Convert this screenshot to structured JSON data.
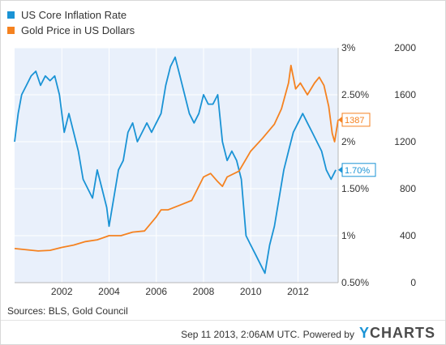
{
  "legend": [
    {
      "label": "US Core Inflation Rate",
      "color": "#1a93d5"
    },
    {
      "label": "Gold Price in US Dollars",
      "color": "#f58220"
    }
  ],
  "chart_data": {
    "type": "line",
    "x_ticks": [
      2002,
      2004,
      2006,
      2008,
      2010,
      2012
    ],
    "x_range": [
      2000.0,
      2013.7
    ],
    "plot_background": "#e9f0fb",
    "grid": true,
    "legend_position": "top-left",
    "axes": {
      "left": {
        "ticks": [
          "3%",
          "2.50%",
          "2%",
          "1.50%",
          "1%",
          "0.50%"
        ],
        "range": [
          0.5,
          3.0
        ]
      },
      "right": {
        "ticks": [
          "2000",
          "1600",
          "1200",
          "800",
          "400",
          "0"
        ],
        "range": [
          0,
          2000
        ]
      }
    },
    "series": [
      {
        "name": "US Core Inflation Rate",
        "axis": "left",
        "color": "#1a93d5",
        "end_label": "1.70%",
        "x": [
          2000.0,
          2000.15,
          2000.3,
          2000.5,
          2000.7,
          2000.9,
          2001.1,
          2001.3,
          2001.5,
          2001.7,
          2001.9,
          2002.1,
          2002.3,
          2002.5,
          2002.7,
          2002.9,
          2003.1,
          2003.3,
          2003.5,
          2003.7,
          2003.9,
          2004.0,
          2004.2,
          2004.4,
          2004.6,
          2004.8,
          2005.0,
          2005.2,
          2005.4,
          2005.6,
          2005.8,
          2006.0,
          2006.2,
          2006.4,
          2006.6,
          2006.8,
          2007.0,
          2007.2,
          2007.4,
          2007.6,
          2007.8,
          2008.0,
          2008.2,
          2008.4,
          2008.6,
          2008.8,
          2009.0,
          2009.2,
          2009.4,
          2009.6,
          2009.8,
          2010.0,
          2010.2,
          2010.4,
          2010.6,
          2010.8,
          2011.0,
          2011.2,
          2011.4,
          2011.6,
          2011.8,
          2012.0,
          2012.2,
          2012.4,
          2012.6,
          2012.8,
          2013.0,
          2013.2,
          2013.4,
          2013.6
        ],
        "y": [
          2.0,
          2.3,
          2.5,
          2.6,
          2.7,
          2.75,
          2.6,
          2.7,
          2.65,
          2.7,
          2.5,
          2.1,
          2.3,
          2.1,
          1.9,
          1.6,
          1.5,
          1.4,
          1.7,
          1.5,
          1.3,
          1.1,
          1.4,
          1.7,
          1.8,
          2.1,
          2.2,
          2.0,
          2.1,
          2.2,
          2.1,
          2.2,
          2.3,
          2.6,
          2.8,
          2.9,
          2.7,
          2.5,
          2.3,
          2.2,
          2.3,
          2.5,
          2.4,
          2.4,
          2.5,
          2.0,
          1.8,
          1.9,
          1.8,
          1.6,
          1.0,
          0.9,
          0.8,
          0.7,
          0.6,
          0.9,
          1.1,
          1.4,
          1.7,
          1.9,
          2.1,
          2.2,
          2.3,
          2.2,
          2.1,
          2.0,
          1.9,
          1.7,
          1.6,
          1.7
        ]
      },
      {
        "name": "Gold Price in US Dollars",
        "axis": "right",
        "color": "#f58220",
        "end_label": "1387",
        "x": [
          2000.0,
          2000.5,
          2001.0,
          2001.5,
          2002.0,
          2002.5,
          2003.0,
          2003.5,
          2004.0,
          2004.5,
          2005.0,
          2005.5,
          2006.0,
          2006.2,
          2006.5,
          2007.0,
          2007.5,
          2008.0,
          2008.3,
          2008.6,
          2008.8,
          2009.0,
          2009.5,
          2010.0,
          2010.5,
          2011.0,
          2011.3,
          2011.6,
          2011.7,
          2011.9,
          2012.1,
          2012.4,
          2012.7,
          2012.9,
          2013.1,
          2013.3,
          2013.45,
          2013.55,
          2013.7
        ],
        "y": [
          290,
          280,
          270,
          275,
          300,
          320,
          350,
          365,
          400,
          400,
          430,
          440,
          560,
          620,
          620,
          660,
          700,
          900,
          930,
          860,
          820,
          900,
          950,
          1120,
          1230,
          1350,
          1480,
          1700,
          1850,
          1650,
          1700,
          1600,
          1700,
          1750,
          1680,
          1500,
          1270,
          1200,
          1387
        ]
      }
    ]
  },
  "footer": {
    "sources": "Sources: BLS, Gold Council",
    "timestamp": "Sep 11 2013, 2:06AM UTC.",
    "powered": "Powered by",
    "brand_y": "Y",
    "brand_rest": "CHARTS"
  }
}
